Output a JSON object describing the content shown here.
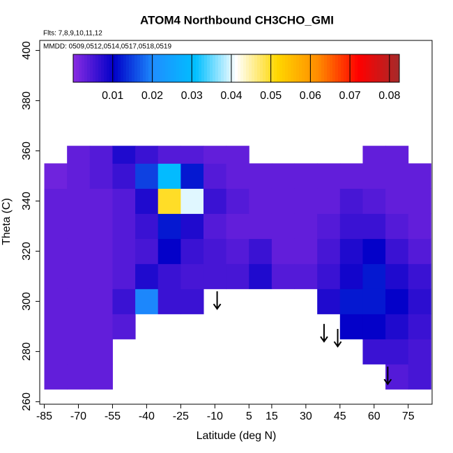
{
  "chart_data": {
    "type": "heatmap",
    "title": "ATOM4 Northbound CH3CHO_GMI",
    "subtitle": "Flts: 7,8,9,10,11,12",
    "annotation": "MMDD: 0509,0512,0514,0517,0518,0519",
    "x_label": "Latitude (deg N)",
    "y_label": "Theta (C)",
    "xlim": [
      -87,
      85.5
    ],
    "ylim": [
      259,
      404
    ],
    "xticks": [
      -85,
      -70,
      -55,
      -40,
      -25,
      -10,
      5,
      15,
      30,
      45,
      60,
      75
    ],
    "yticks": [
      260,
      280,
      300,
      320,
      340,
      360,
      380,
      400
    ],
    "lat_edges": [
      -85,
      -75,
      -65,
      -55,
      -45,
      -35,
      -25,
      -15,
      -5,
      5,
      15,
      25,
      35,
      45,
      55,
      65,
      75,
      85
    ],
    "theta_edges": [
      265,
      275,
      285,
      295,
      305,
      315,
      325,
      335,
      345,
      355,
      362
    ],
    "values": [
      [
        0.003,
        0.003,
        0.003,
        null,
        null,
        null,
        null,
        null,
        null,
        null,
        null,
        null,
        null,
        null,
        null,
        0.004,
        0.005
      ],
      [
        0.003,
        0.003,
        0.003,
        null,
        null,
        null,
        null,
        null,
        null,
        null,
        null,
        null,
        null,
        null,
        0.006,
        0.006,
        0.005
      ],
      [
        0.003,
        0.003,
        0.003,
        0.004,
        null,
        null,
        null,
        null,
        null,
        null,
        null,
        null,
        null,
        0.01,
        0.01,
        0.008,
        0.006
      ],
      [
        0.003,
        0.003,
        0.003,
        0.006,
        0.02,
        0.006,
        0.006,
        null,
        null,
        null,
        null,
        null,
        0.008,
        0.012,
        0.012,
        0.01,
        0.007
      ],
      [
        0.003,
        0.003,
        0.003,
        0.004,
        0.008,
        0.006,
        0.005,
        0.005,
        0.005,
        0.008,
        0.004,
        0.004,
        0.006,
        0.009,
        0.012,
        0.008,
        0.006
      ],
      [
        0.003,
        0.003,
        0.003,
        0.004,
        0.005,
        0.01,
        0.006,
        0.005,
        0.004,
        0.006,
        0.003,
        0.003,
        0.005,
        0.008,
        0.01,
        0.006,
        0.004
      ],
      [
        0.003,
        0.003,
        0.003,
        0.004,
        0.006,
        0.012,
        0.008,
        0.004,
        0.003,
        0.003,
        0.003,
        0.003,
        0.004,
        0.006,
        0.006,
        0.004,
        0.003
      ],
      [
        0.003,
        0.003,
        0.003,
        0.004,
        0.008,
        0.05,
        0.04,
        0.006,
        0.004,
        0.003,
        0.003,
        0.003,
        0.003,
        0.005,
        0.004,
        0.003,
        0.003
      ],
      [
        0.002,
        0.003,
        0.004,
        0.006,
        0.015,
        0.03,
        0.012,
        0.004,
        0.003,
        0.003,
        0.003,
        0.003,
        0.003,
        0.003,
        0.003,
        0.003,
        0.003
      ],
      [
        null,
        0.003,
        0.004,
        0.008,
        0.006,
        0.004,
        0.004,
        0.003,
        0.003,
        null,
        null,
        null,
        null,
        null,
        0.003,
        0.003,
        null
      ]
    ],
    "clim": [
      0,
      0.0825
    ],
    "cticks": [
      0.01,
      0.02,
      0.03,
      0.04,
      0.05,
      0.06,
      0.07,
      0.08
    ],
    "colorscale": [
      "#8a2be2",
      "#0000c8",
      "#1e90ff",
      "#00bfff",
      "#ffffff",
      "#ffd700",
      "#ff8c00",
      "#ff0000",
      "#a52a2a"
    ],
    "arrows": [
      {
        "lat": -9,
        "theta_top": 304,
        "theta_bottom": 297
      },
      {
        "lat": 38,
        "theta_top": 291,
        "theta_bottom": 284
      },
      {
        "lat": 44,
        "theta_top": 289,
        "theta_bottom": 282
      },
      {
        "lat": 66,
        "theta_top": 274,
        "theta_bottom": 267
      }
    ]
  }
}
